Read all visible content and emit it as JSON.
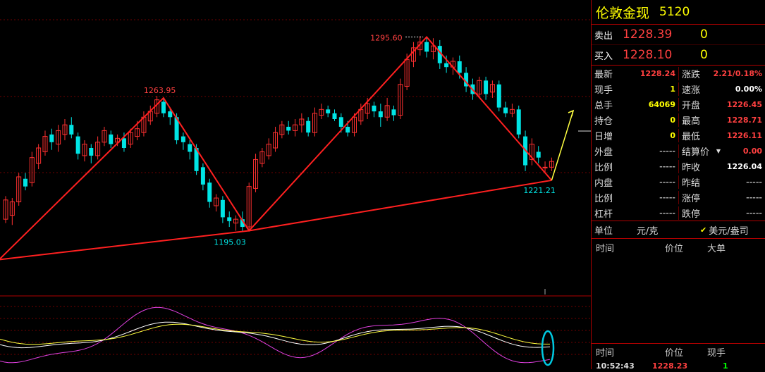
{
  "symbol": {
    "name": "伦敦金现",
    "code": "5120"
  },
  "quote": {
    "sell_label": "卖出",
    "sell_price": "1228.39",
    "sell_vol": "0",
    "buy_label": "买入",
    "buy_price": "1228.10",
    "buy_vol": "0"
  },
  "stats": [
    {
      "l": "最新",
      "v": "1228.24",
      "c": "#ff4040",
      "l2": "涨跌",
      "v2": "2.21/0.18%",
      "c2": "#ff4040"
    },
    {
      "l": "现手",
      "v": "1",
      "c": "#ffff00",
      "l2": "速涨",
      "v2": "0.00%",
      "c2": "#ffffff"
    },
    {
      "l": "总手",
      "v": "64069",
      "c": "#ffff00",
      "l2": "开盘",
      "v2": "1226.45",
      "c2": "#ff4040"
    },
    {
      "l": "持仓",
      "v": "0",
      "c": "#ffff00",
      "l2": "最高",
      "v2": "1228.71",
      "c2": "#ff4040"
    },
    {
      "l": "日增",
      "v": "0",
      "c": "#ffff00",
      "l2": "最低",
      "v2": "1226.11",
      "c2": "#ff4040"
    },
    {
      "l": "外盘",
      "v": "-----",
      "c": "#aaaaaa",
      "l2": "结算价",
      "v2": "0.00",
      "c2": "#ff4040"
    },
    {
      "l": "比例",
      "v": "-----",
      "c": "#aaaaaa",
      "l2": "昨收",
      "v2": "1226.04",
      "c2": "#ffffff"
    },
    {
      "l": "内盘",
      "v": "-----",
      "c": "#aaaaaa",
      "l2": "昨结",
      "v2": "-----",
      "c2": "#aaaaaa"
    },
    {
      "l": "比例",
      "v": "-----",
      "c": "#aaaaaa",
      "l2": "涨停",
      "v2": "-----",
      "c2": "#aaaaaa"
    },
    {
      "l": "杠杆",
      "v": "-----",
      "c": "#aaaaaa",
      "l2": "跌停",
      "v2": "-----",
      "c2": "#aaaaaa"
    }
  ],
  "units": {
    "label": "单位",
    "unit1": "元/克",
    "check": "✔",
    "unit2": "美元/盎司"
  },
  "ticks_header": {
    "time": "时间",
    "price": "价位",
    "size": "大单"
  },
  "trades_header": {
    "time": "时间",
    "price": "价位",
    "qty": "现手"
  },
  "trades": [
    {
      "time": "10:52:43",
      "price": "1228.23",
      "qty": "1"
    }
  ],
  "chart_data": {
    "type": "candlestick",
    "price_range": [
      1163,
      1313
    ],
    "annotations": [
      {
        "label": "1263.95",
        "value": 1263.95
      },
      {
        "label": "1195.03",
        "value": 1195.03
      },
      {
        "label": "1295.60",
        "value": 1295.6
      },
      {
        "label": "1221.21",
        "value": 1221.21
      }
    ],
    "candles": [
      [
        1201,
        1211,
        1199,
        1213
      ],
      [
        1203,
        1210,
        1198,
        1212
      ],
      [
        1210,
        1223,
        1208,
        1225
      ],
      [
        1222,
        1218,
        1216,
        1225
      ],
      [
        1220,
        1233,
        1218,
        1236
      ],
      [
        1230,
        1238,
        1227,
        1240
      ],
      [
        1236,
        1244,
        1234,
        1247
      ],
      [
        1245,
        1241,
        1237,
        1248
      ],
      [
        1240,
        1247,
        1236,
        1250
      ],
      [
        1245,
        1250,
        1242,
        1253
      ],
      [
        1250,
        1245,
        1243,
        1254
      ],
      [
        1244,
        1235,
        1232,
        1246
      ],
      [
        1234,
        1240,
        1231,
        1242
      ],
      [
        1238,
        1234,
        1230,
        1240
      ],
      [
        1234,
        1241,
        1232,
        1244
      ],
      [
        1241,
        1247,
        1239,
        1249
      ],
      [
        1245,
        1240,
        1238,
        1247
      ],
      [
        1241,
        1243,
        1239,
        1245
      ],
      [
        1243,
        1238,
        1236,
        1246
      ],
      [
        1240,
        1246,
        1238,
        1248
      ],
      [
        1244,
        1248,
        1242,
        1252
      ],
      [
        1246,
        1254,
        1244,
        1257
      ],
      [
        1252,
        1257,
        1250,
        1260
      ],
      [
        1256,
        1263,
        1254,
        1265
      ],
      [
        1262,
        1256,
        1254,
        1264
      ],
      [
        1257,
        1254,
        1250,
        1259
      ],
      [
        1254,
        1242,
        1240,
        1256
      ],
      [
        1244,
        1241,
        1237,
        1246
      ],
      [
        1240,
        1236,
        1232,
        1242
      ],
      [
        1238,
        1226,
        1224,
        1240
      ],
      [
        1228,
        1219,
        1216,
        1230
      ],
      [
        1220,
        1210,
        1207,
        1222
      ],
      [
        1208,
        1212,
        1205,
        1214
      ],
      [
        1211,
        1202,
        1199,
        1213
      ],
      [
        1202,
        1200,
        1197,
        1205
      ],
      [
        1199,
        1201,
        1195,
        1203
      ],
      [
        1201,
        1197,
        1195,
        1205
      ],
      [
        1197,
        1218,
        1195,
        1220
      ],
      [
        1217,
        1232,
        1215,
        1235
      ],
      [
        1230,
        1236,
        1228,
        1238
      ],
      [
        1234,
        1240,
        1232,
        1243
      ],
      [
        1238,
        1246,
        1236,
        1249
      ],
      [
        1245,
        1250,
        1243,
        1252
      ],
      [
        1249,
        1247,
        1245,
        1252
      ],
      [
        1247,
        1250,
        1244,
        1253
      ],
      [
        1250,
        1253,
        1246,
        1256
      ],
      [
        1252,
        1246,
        1244,
        1254
      ],
      [
        1246,
        1256,
        1244,
        1259
      ],
      [
        1255,
        1258,
        1253,
        1261
      ],
      [
        1258,
        1256,
        1254,
        1260
      ],
      [
        1256,
        1253,
        1252,
        1258
      ],
      [
        1254,
        1249,
        1246,
        1256
      ],
      [
        1249,
        1246,
        1244,
        1252
      ],
      [
        1246,
        1254,
        1244,
        1256
      ],
      [
        1252,
        1258,
        1250,
        1261
      ],
      [
        1256,
        1261,
        1253,
        1264
      ],
      [
        1260,
        1257,
        1254,
        1262
      ],
      [
        1257,
        1254,
        1249,
        1261
      ],
      [
        1254,
        1260,
        1252,
        1264
      ],
      [
        1258,
        1255,
        1252,
        1260
      ],
      [
        1255,
        1271,
        1253,
        1274
      ],
      [
        1270,
        1284,
        1268,
        1287
      ],
      [
        1283,
        1290,
        1280,
        1293
      ],
      [
        1289,
        1293,
        1286,
        1296
      ],
      [
        1293,
        1288,
        1285,
        1295
      ],
      [
        1288,
        1291,
        1284,
        1295
      ],
      [
        1291,
        1282,
        1279,
        1294
      ],
      [
        1282,
        1280,
        1277,
        1286
      ],
      [
        1280,
        1283,
        1276,
        1285
      ],
      [
        1283,
        1277,
        1274,
        1286
      ],
      [
        1277,
        1270,
        1267,
        1280
      ],
      [
        1271,
        1266,
        1263,
        1274
      ],
      [
        1266,
        1273,
        1264,
        1275
      ],
      [
        1273,
        1266,
        1263,
        1275
      ],
      [
        1267,
        1271,
        1264,
        1273
      ],
      [
        1271,
        1259,
        1257,
        1273
      ],
      [
        1259,
        1256,
        1254,
        1262
      ],
      [
        1256,
        1258,
        1254,
        1261
      ],
      [
        1258,
        1245,
        1243,
        1260
      ],
      [
        1244,
        1229,
        1226,
        1247
      ],
      [
        1232,
        1240,
        1229,
        1243
      ],
      [
        1236,
        1233,
        1230,
        1239
      ],
      [
        1228,
        1228,
        1225,
        1231
      ],
      [
        1228,
        1231,
        1226,
        1233
      ]
    ]
  }
}
